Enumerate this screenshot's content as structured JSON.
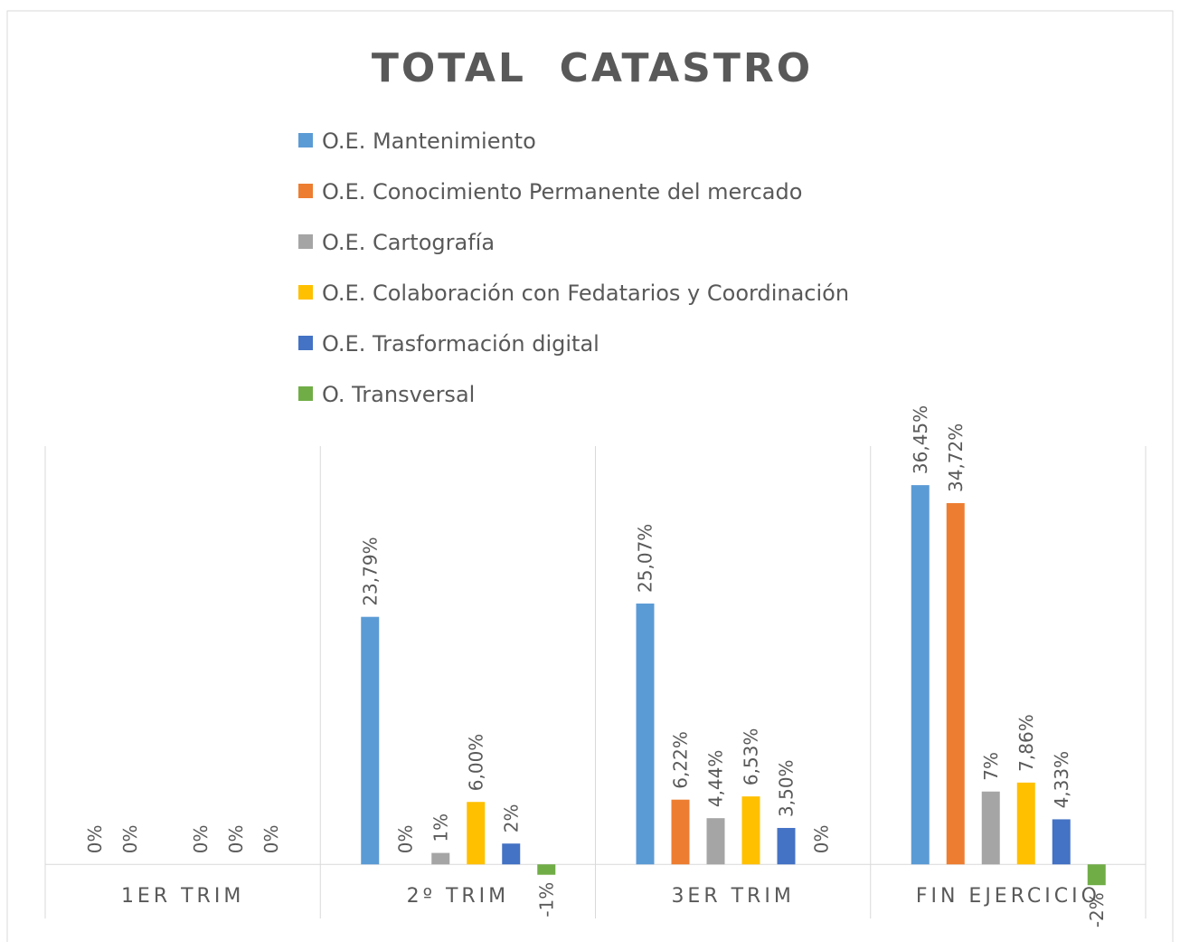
{
  "chart_data": {
    "type": "bar",
    "title": "TOTAL  CATASTRO",
    "categories": [
      "1ER TRIM",
      "2º TRIM",
      "3ER TRIM",
      "FIN EJERCICIO"
    ],
    "ylim": [
      -5.2,
      40.2
    ],
    "series": [
      {
        "name": "O.E. Mantenimiento",
        "color": "#5b9bd5",
        "values": [
          0,
          23.79,
          25.07,
          36.45
        ],
        "value_labels": [
          "0%",
          "23,79%",
          "25,07%",
          "36,45%"
        ]
      },
      {
        "name": "O.E. Conocimiento Permanente del mercado",
        "color": "#ed7d31",
        "values": [
          0,
          0,
          6.22,
          34.72
        ],
        "value_labels": [
          "0%",
          "0%",
          "6,22%",
          "34,72%"
        ]
      },
      {
        "name": "O.E. Cartografía",
        "color": "#a5a5a5",
        "values": [
          null,
          1.1,
          4.44,
          7.0
        ],
        "value_labels": [
          null,
          "1%",
          "4,44%",
          "7%"
        ]
      },
      {
        "name": "O.E. Colaboración con Fedatarios y Coordinación",
        "color": "#ffc000",
        "values": [
          0,
          6.0,
          6.53,
          7.86
        ],
        "value_labels": [
          "0%",
          "6,00%",
          "6,53%",
          "7,86%"
        ]
      },
      {
        "name": "O.E. Trasformación digital",
        "color": "#4472c4",
        "values": [
          0,
          2.0,
          3.5,
          4.33
        ],
        "value_labels": [
          "0%",
          "2%",
          "3,50%",
          "4,33%"
        ]
      },
      {
        "name": "O. Transversal",
        "color": "#70ad47",
        "values": [
          0,
          -1.0,
          0,
          -2.0
        ],
        "value_labels": [
          "0%",
          "-1%",
          "0%",
          "-2%"
        ]
      }
    ]
  }
}
